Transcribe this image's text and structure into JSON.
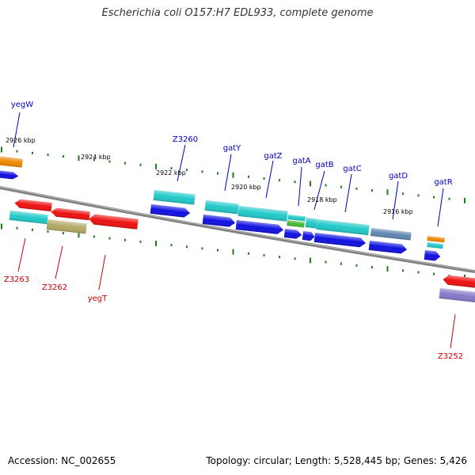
{
  "title": "Escherichia coli O157:H7 EDL933, complete genome",
  "footer": {
    "accession": "Accession: NC_002655",
    "summary": "Topology: circular; Length: 5,528,445 bp; Genes: 5,426"
  },
  "colors": {
    "backbone": "#808080",
    "tick": "#1f7f1f",
    "upper_label": "#0000c0",
    "lower_label": "#cc0000",
    "cds_blue": "#1010e0",
    "cds_red": "#ee1111",
    "cds_cyan": "#22c8c8",
    "cds_orange": "#ee8800",
    "cds_green": "#44bb33",
    "cds_khaki": "#b3a865",
    "cds_slate": "#5f87b0",
    "cds_lavender": "#8878c8"
  },
  "scale_labels": [
    {
      "text": "2926 kbp"
    },
    {
      "text": "2924 kbp"
    },
    {
      "text": "2922 kbp"
    },
    {
      "text": "2920 kbp"
    },
    {
      "text": "2918 kbp"
    },
    {
      "text": "2916 kbp"
    }
  ],
  "genes_top": [
    {
      "name": "yegW"
    },
    {
      "name": "Z3260"
    },
    {
      "name": "gatY"
    },
    {
      "name": "gatZ"
    },
    {
      "name": "gatA"
    },
    {
      "name": "gatB"
    },
    {
      "name": "gatC"
    },
    {
      "name": "gatD"
    },
    {
      "name": "gatR"
    }
  ],
  "genes_bottom": [
    {
      "name": "Z3263"
    },
    {
      "name": "Z3262"
    },
    {
      "name": "yegT"
    },
    {
      "name": "Z3252"
    }
  ]
}
